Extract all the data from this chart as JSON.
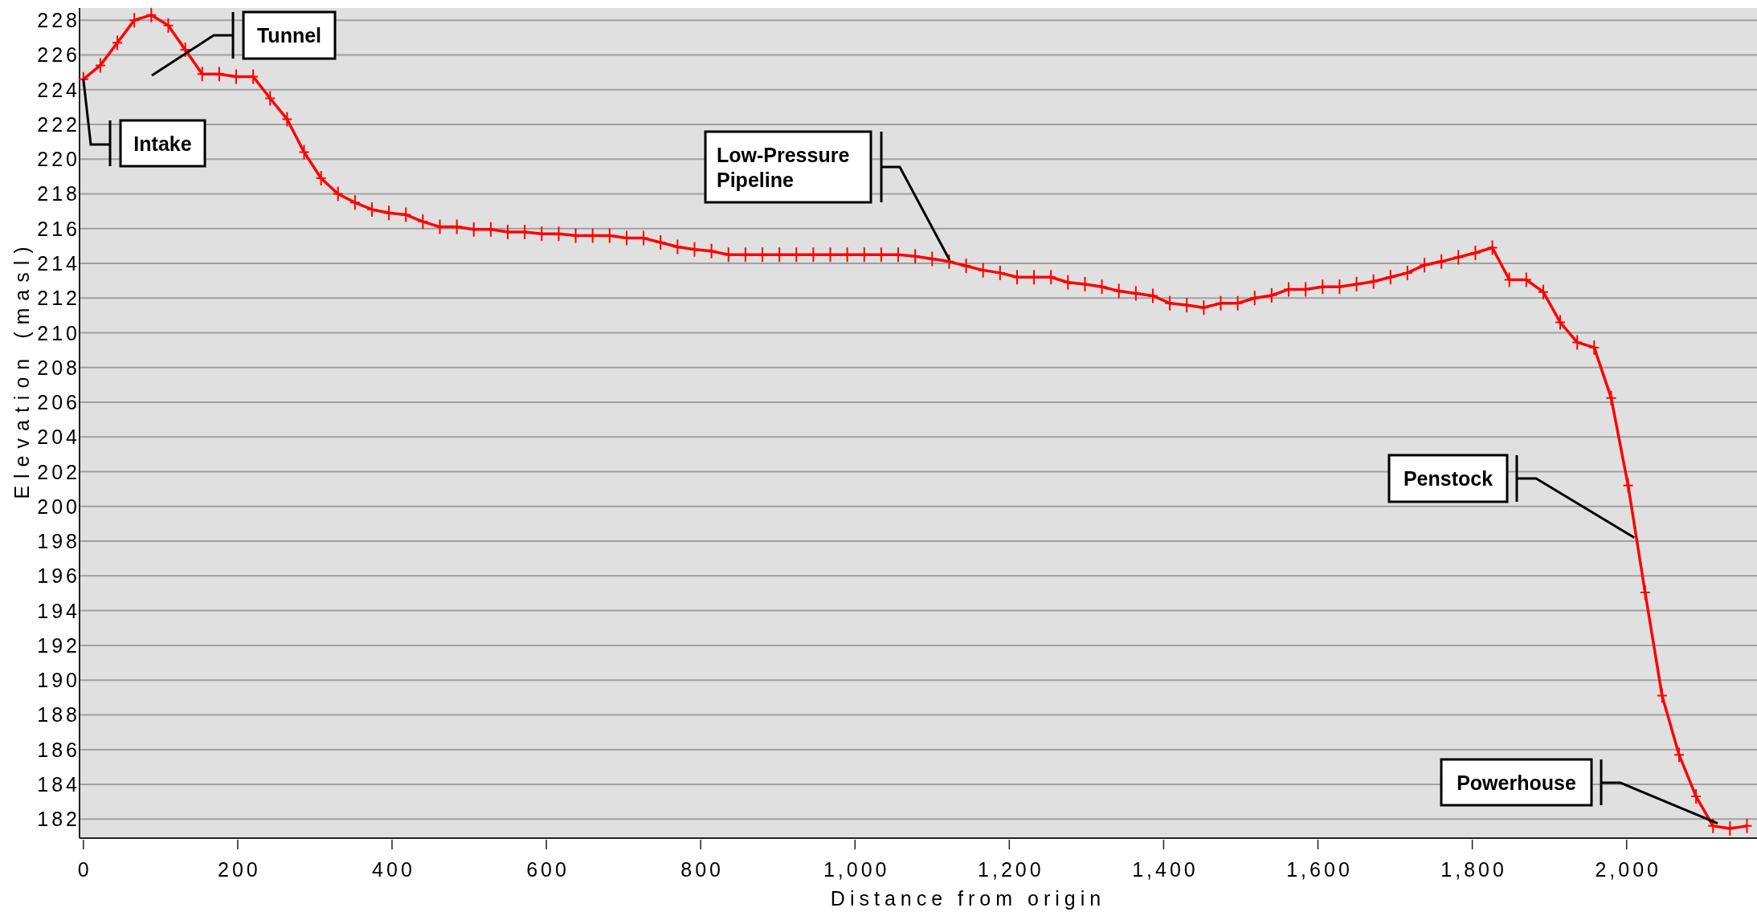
{
  "chart_data": {
    "type": "line",
    "xlabel": "Distance from origin",
    "ylabel": "Elevation (masl)",
    "xlim": [
      -5,
      2169
    ],
    "ylim": [
      180.9,
      228.7
    ],
    "xticks": [
      {
        "value": 0,
        "label": "0"
      },
      {
        "value": 200,
        "label": "200"
      },
      {
        "value": 400,
        "label": "400"
      },
      {
        "value": 600,
        "label": "600"
      },
      {
        "value": 800,
        "label": "800"
      },
      {
        "value": 1000,
        "label": "1,000"
      },
      {
        "value": 1200,
        "label": "1,200"
      },
      {
        "value": 1400,
        "label": "1,400"
      },
      {
        "value": 1600,
        "label": "1,600"
      },
      {
        "value": 1800,
        "label": "1,800"
      },
      {
        "value": 2000,
        "label": "2,000"
      }
    ],
    "yticks": [
      182,
      184,
      186,
      188,
      190,
      192,
      194,
      196,
      198,
      200,
      202,
      204,
      206,
      208,
      210,
      212,
      214,
      216,
      218,
      220,
      222,
      224,
      226,
      228
    ],
    "grid": "y",
    "marker": "cross",
    "line_style": "solid",
    "x": [
      0,
      22,
      44,
      66,
      88,
      110,
      132,
      154,
      176,
      198,
      220,
      242,
      264,
      286,
      308,
      330,
      352,
      374,
      396,
      418,
      440,
      462,
      484,
      506,
      528,
      550,
      572,
      594,
      616,
      638,
      660,
      682,
      704,
      726,
      748,
      770,
      792,
      814,
      836,
      858,
      880,
      902,
      924,
      946,
      968,
      990,
      1012,
      1034,
      1056,
      1078,
      1100,
      1122,
      1144,
      1166,
      1188,
      1210,
      1232,
      1254,
      1276,
      1298,
      1320,
      1342,
      1364,
      1386,
      1408,
      1430,
      1452,
      1474,
      1496,
      1518,
      1540,
      1562,
      1584,
      1606,
      1628,
      1650,
      1672,
      1694,
      1716,
      1738,
      1760,
      1782,
      1804,
      1826,
      1848,
      1870,
      1892,
      1914,
      1936,
      1958,
      1980,
      2002,
      2024,
      2046,
      2068,
      2090,
      2112,
      2134,
      2156
    ],
    "series": [
      {
        "color": "#ff0000",
        "values": [
          224.6,
          225.4,
          226.7,
          228.0,
          228.3,
          227.7,
          226.3,
          224.9,
          224.9,
          224.75,
          224.75,
          223.5,
          222.3,
          220.4,
          218.9,
          218.0,
          217.5,
          217.1,
          216.9,
          216.8,
          216.4,
          216.1,
          216.1,
          215.95,
          215.95,
          215.8,
          215.8,
          215.7,
          215.7,
          215.6,
          215.6,
          215.6,
          215.45,
          215.45,
          215.2,
          214.95,
          214.8,
          214.7,
          214.5,
          214.5,
          214.5,
          214.5,
          214.5,
          214.5,
          214.5,
          214.5,
          214.5,
          214.5,
          214.5,
          214.4,
          214.25,
          214.1,
          213.85,
          213.6,
          213.45,
          213.2,
          213.2,
          213.2,
          212.9,
          212.8,
          212.65,
          212.4,
          212.27,
          212.13,
          211.7,
          211.6,
          211.45,
          211.7,
          211.7,
          212.0,
          212.15,
          212.5,
          212.5,
          212.65,
          212.65,
          212.8,
          212.95,
          213.2,
          213.45,
          213.9,
          214.1,
          214.35,
          214.6,
          214.9,
          213.05,
          213.05,
          212.35,
          210.6,
          209.45,
          209.15,
          206.25,
          201.2,
          195.05,
          189.1,
          185.7,
          183.3,
          181.6,
          181.45,
          181.6
        ]
      }
    ],
    "annotations": [
      {
        "text": "Intake",
        "x": 0,
        "y": 224.6
      },
      "Tunnel",
      "Low-Pressure\nPipeline",
      {
        "text": "Penstock",
        "x": 2010,
        "y": 198.2
      },
      {
        "text": "Powerhouse",
        "x": 2118,
        "y": 181.75
      }
    ]
  }
}
